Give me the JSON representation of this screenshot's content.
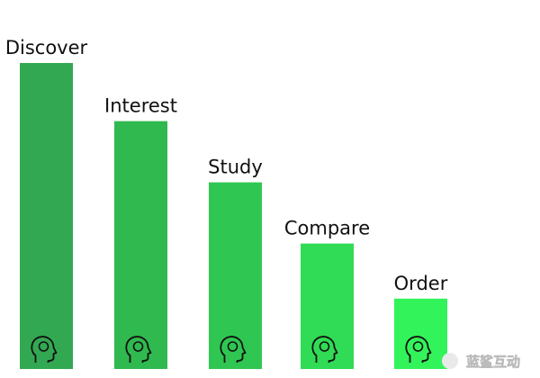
{
  "chart_data": {
    "type": "bar",
    "categories": [
      "Discover",
      "Interest",
      "Study",
      "Compare",
      "Order"
    ],
    "values": [
      100,
      81,
      61,
      41,
      23
    ],
    "colors": [
      "#33a852",
      "#30b94f",
      "#2fc752",
      "#30dc55",
      "#33f35b"
    ],
    "watermark": "蓝鲨互动"
  }
}
